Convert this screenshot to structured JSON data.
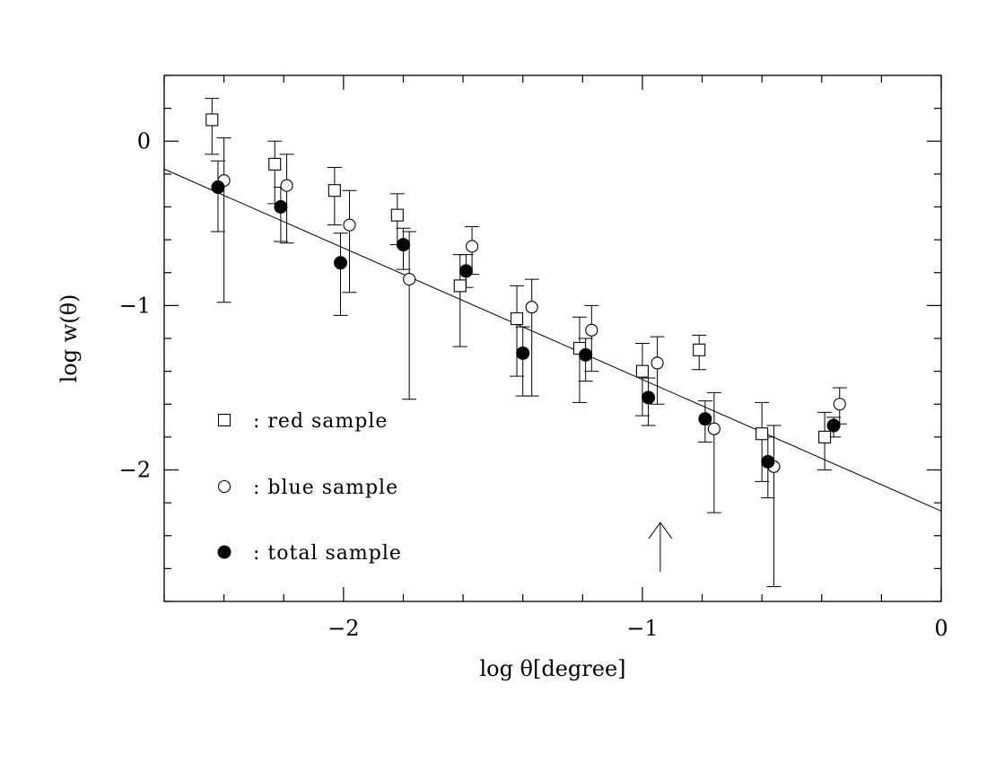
{
  "chart_data": {
    "type": "scatter",
    "title": "",
    "xlabel": "log θ[degree]",
    "ylabel": "log w(θ)",
    "xlim": [
      -2.6,
      0
    ],
    "ylim": [
      -2.8,
      0.4
    ],
    "x_major_ticks": [
      -2,
      -1,
      0
    ],
    "x_tick_labels": [
      "−2",
      "−1",
      "0"
    ],
    "y_major_ticks": [
      0,
      -1,
      -2
    ],
    "y_tick_labels": [
      "0",
      "−1",
      "−2"
    ],
    "grid": false,
    "legend_position": "bottom-left",
    "series": [
      {
        "name": ": red sample",
        "marker": "open-square",
        "points": [
          {
            "x": -2.44,
            "y": 0.13,
            "lo": -0.08,
            "hi": 0.26
          },
          {
            "x": -2.23,
            "y": -0.14,
            "lo": -0.38,
            "hi": 0.0
          },
          {
            "x": -2.03,
            "y": -0.3,
            "lo": -0.51,
            "hi": -0.16
          },
          {
            "x": -1.82,
            "y": -0.45,
            "lo": -0.63,
            "hi": -0.32
          },
          {
            "x": -1.61,
            "y": -0.88,
            "lo": -1.25,
            "hi": -0.69
          },
          {
            "x": -1.42,
            "y": -1.08,
            "lo": -1.43,
            "hi": -0.88
          },
          {
            "x": -1.21,
            "y": -1.26,
            "lo": -1.59,
            "hi": -1.07
          },
          {
            "x": -1.0,
            "y": -1.4,
            "lo": -1.67,
            "hi": -1.23
          },
          {
            "x": -0.81,
            "y": -1.27,
            "lo": -1.39,
            "hi": -1.18
          },
          {
            "x": -0.6,
            "y": -1.78,
            "lo": -2.07,
            "hi": -1.59
          },
          {
            "x": -0.39,
            "y": -1.8,
            "lo": -2.0,
            "hi": -1.65
          }
        ]
      },
      {
        "name": ": blue sample",
        "marker": "open-circle",
        "points": [
          {
            "x": -2.4,
            "y": -0.24,
            "lo": -0.98,
            "hi": 0.02
          },
          {
            "x": -2.19,
            "y": -0.27,
            "lo": -0.62,
            "hi": -0.08
          },
          {
            "x": -1.98,
            "y": -0.51,
            "lo": -0.92,
            "hi": -0.3
          },
          {
            "x": -1.78,
            "y": -0.84,
            "lo": -1.57,
            "hi": -0.55
          },
          {
            "x": -1.57,
            "y": -0.64,
            "lo": -0.81,
            "hi": -0.52
          },
          {
            "x": -1.37,
            "y": -1.01,
            "lo": -1.55,
            "hi": -0.84
          },
          {
            "x": -1.17,
            "y": -1.15,
            "lo": -1.4,
            "hi": -1.0
          },
          {
            "x": -0.95,
            "y": -1.35,
            "lo": -1.6,
            "hi": -1.19
          },
          {
            "x": -0.76,
            "y": -1.75,
            "lo": -2.26,
            "hi": -1.53
          },
          {
            "x": -0.56,
            "y": -1.98,
            "lo": -2.71,
            "hi": -1.73
          },
          {
            "x": -0.34,
            "y": -1.6,
            "lo": -1.72,
            "hi": -1.5
          }
        ]
      },
      {
        "name": ": total sample",
        "marker": "filled-circle",
        "points": [
          {
            "x": -2.42,
            "y": -0.28,
            "lo": -0.55,
            "hi": -0.12
          },
          {
            "x": -2.21,
            "y": -0.4,
            "lo": -0.61,
            "hi": -0.28
          },
          {
            "x": -2.01,
            "y": -0.74,
            "lo": -1.06,
            "hi": -0.56
          },
          {
            "x": -1.8,
            "y": -0.63,
            "lo": -0.78,
            "hi": -0.53
          },
          {
            "x": -1.59,
            "y": -0.79,
            "lo": -0.89,
            "hi": -0.69
          },
          {
            "x": -1.4,
            "y": -1.29,
            "lo": -1.55,
            "hi": -1.13
          },
          {
            "x": -1.19,
            "y": -1.3,
            "lo": -1.46,
            "hi": -1.2
          },
          {
            "x": -0.98,
            "y": -1.56,
            "lo": -1.73,
            "hi": -1.44
          },
          {
            "x": -0.79,
            "y": -1.69,
            "lo": -1.83,
            "hi": -1.58
          },
          {
            "x": -0.58,
            "y": -1.95,
            "lo": -2.17,
            "hi": -1.8
          },
          {
            "x": -0.36,
            "y": -1.73,
            "lo": -1.8,
            "hi": -1.68
          }
        ]
      }
    ],
    "fit_line": {
      "x": [
        -2.6,
        0
      ],
      "y": [
        -0.17,
        -2.25
      ]
    },
    "arrow_annotation": {
      "x": -0.94,
      "y_tail": -2.62,
      "y_head": -2.32
    }
  }
}
